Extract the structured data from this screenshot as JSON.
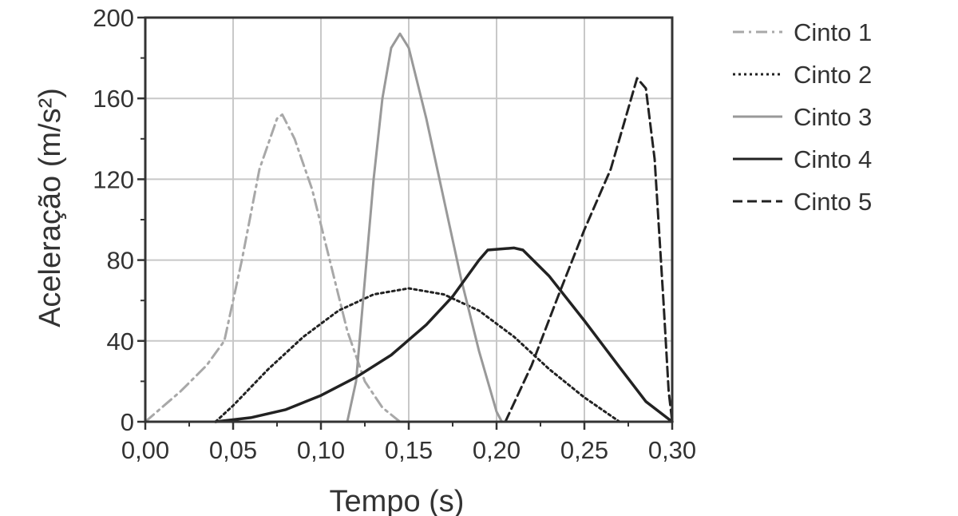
{
  "chart_data": {
    "type": "line",
    "title": "",
    "xlabel": "Tempo (s)",
    "ylabel": "Aceleração (m/s²)",
    "xlim": [
      0,
      0.3
    ],
    "ylim": [
      0,
      200
    ],
    "x_ticks": [
      "0,00",
      "0,05",
      "0,10",
      "0,15",
      "0,20",
      "0,25",
      "0,30"
    ],
    "y_ticks": [
      "0",
      "40",
      "80",
      "120",
      "160",
      "200"
    ],
    "grid": true,
    "legend_position": "right",
    "series": [
      {
        "name": "Cinto 1",
        "style": "dash-dot",
        "color": "#a8a8a8",
        "points": [
          [
            0.0,
            0
          ],
          [
            0.02,
            15
          ],
          [
            0.035,
            28
          ],
          [
            0.045,
            40
          ],
          [
            0.055,
            80
          ],
          [
            0.065,
            125
          ],
          [
            0.075,
            150
          ],
          [
            0.078,
            152
          ],
          [
            0.085,
            140
          ],
          [
            0.095,
            115
          ],
          [
            0.105,
            80
          ],
          [
            0.115,
            45
          ],
          [
            0.125,
            20
          ],
          [
            0.135,
            7
          ],
          [
            0.145,
            0
          ]
        ]
      },
      {
        "name": "Cinto 2",
        "style": "dotted",
        "color": "#222222",
        "points": [
          [
            0.04,
            0
          ],
          [
            0.05,
            8
          ],
          [
            0.07,
            26
          ],
          [
            0.09,
            42
          ],
          [
            0.11,
            55
          ],
          [
            0.13,
            63
          ],
          [
            0.15,
            66
          ],
          [
            0.17,
            63
          ],
          [
            0.19,
            55
          ],
          [
            0.21,
            42
          ],
          [
            0.23,
            26
          ],
          [
            0.25,
            12
          ],
          [
            0.265,
            3
          ],
          [
            0.27,
            0
          ]
        ]
      },
      {
        "name": "Cinto 3",
        "style": "solid",
        "color": "#999999",
        "points": [
          [
            0.115,
            0
          ],
          [
            0.12,
            20
          ],
          [
            0.125,
            70
          ],
          [
            0.13,
            120
          ],
          [
            0.135,
            160
          ],
          [
            0.14,
            185
          ],
          [
            0.145,
            192
          ],
          [
            0.15,
            185
          ],
          [
            0.16,
            150
          ],
          [
            0.17,
            110
          ],
          [
            0.18,
            70
          ],
          [
            0.19,
            35
          ],
          [
            0.2,
            5
          ],
          [
            0.203,
            0
          ]
        ]
      },
      {
        "name": "Cinto 4",
        "style": "solid",
        "color": "#222222",
        "points": [
          [
            0.04,
            0
          ],
          [
            0.06,
            2
          ],
          [
            0.08,
            6
          ],
          [
            0.1,
            13
          ],
          [
            0.12,
            22
          ],
          [
            0.14,
            33
          ],
          [
            0.16,
            48
          ],
          [
            0.175,
            62
          ],
          [
            0.19,
            80
          ],
          [
            0.195,
            85
          ],
          [
            0.21,
            86
          ],
          [
            0.215,
            85
          ],
          [
            0.23,
            72
          ],
          [
            0.25,
            50
          ],
          [
            0.27,
            27
          ],
          [
            0.285,
            10
          ],
          [
            0.3,
            0
          ]
        ]
      },
      {
        "name": "Cinto 5",
        "style": "dashed",
        "color": "#222222",
        "points": [
          [
            0.205,
            0
          ],
          [
            0.22,
            28
          ],
          [
            0.235,
            62
          ],
          [
            0.25,
            95
          ],
          [
            0.265,
            125
          ],
          [
            0.275,
            155
          ],
          [
            0.28,
            170
          ],
          [
            0.285,
            165
          ],
          [
            0.29,
            130
          ],
          [
            0.295,
            60
          ],
          [
            0.298,
            15
          ],
          [
            0.3,
            0
          ]
        ]
      }
    ]
  }
}
